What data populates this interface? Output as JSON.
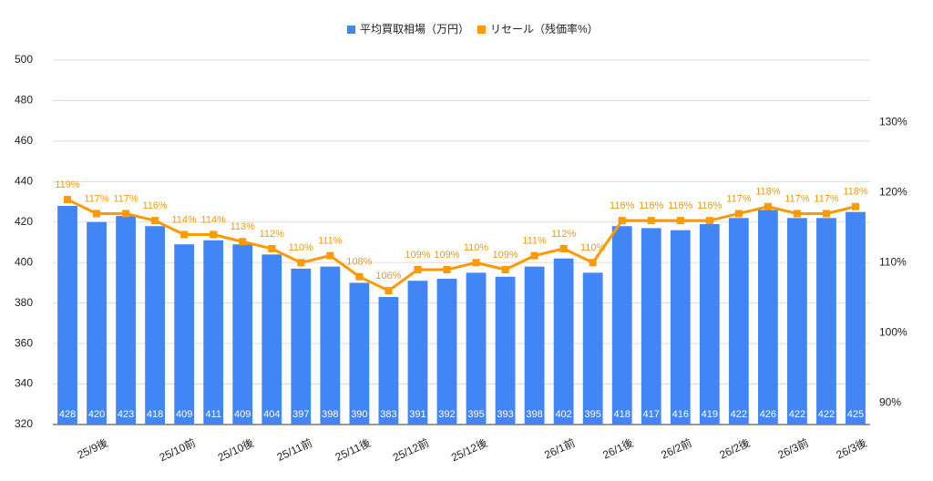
{
  "chart_data": {
    "type": "bar-line",
    "categories": [
      null,
      "25/9後",
      null,
      null,
      "25/10前",
      null,
      "25/10後",
      null,
      "25/11前",
      null,
      "25/11後",
      null,
      "25/12前",
      null,
      "25/12後",
      null,
      null,
      "26/1前",
      null,
      "26/1後",
      null,
      "26/2前",
      null,
      "26/2後",
      null,
      "26/3前",
      null,
      "26/3後"
    ],
    "series": [
      {
        "name": "平均買取相場（万円）",
        "type": "bar",
        "axis": "y",
        "color": "#4285f4",
        "values": [
          428,
          420,
          423,
          418,
          409,
          411,
          409,
          404,
          397,
          398,
          390,
          383,
          391,
          392,
          395,
          393,
          398,
          402,
          395,
          418,
          417,
          416,
          419,
          422,
          426,
          422,
          422,
          425
        ]
      },
      {
        "name": "リセール（残価率%）",
        "type": "line",
        "axis": "y2",
        "color": "#ff9900",
        "values": [
          119,
          117,
          117,
          116,
          114,
          114,
          113,
          112,
          110,
          111,
          108,
          106,
          109,
          109,
          110,
          109,
          111,
          112,
          110,
          116,
          116,
          116,
          116,
          117,
          118,
          117,
          117,
          118
        ],
        "value_labels": [
          "119%",
          "117%",
          "117%",
          "116%",
          "114%",
          "114%",
          "113%",
          "112%",
          "110%",
          "111%",
          "108%",
          "106%",
          "109%",
          "109%",
          "110%",
          "109%",
          "111%",
          "112%",
          "110%",
          "116%",
          "116%",
          "116%",
          "116%",
          "117%",
          "118%",
          "117%",
          "117%",
          "118%"
        ]
      }
    ],
    "ylim": [
      320,
      500
    ],
    "yticks": [
      320,
      340,
      360,
      380,
      400,
      420,
      440,
      460,
      480,
      500
    ],
    "y2lim": [
      86.9,
      138.9
    ],
    "y2ticks": [
      {
        "value": 90,
        "label": "90%"
      },
      {
        "value": 100,
        "label": "100%"
      },
      {
        "value": 110,
        "label": "110%"
      },
      {
        "value": 120,
        "label": "120%"
      },
      {
        "value": 130,
        "label": "130%"
      }
    ],
    "grid": true,
    "legend": "top"
  }
}
